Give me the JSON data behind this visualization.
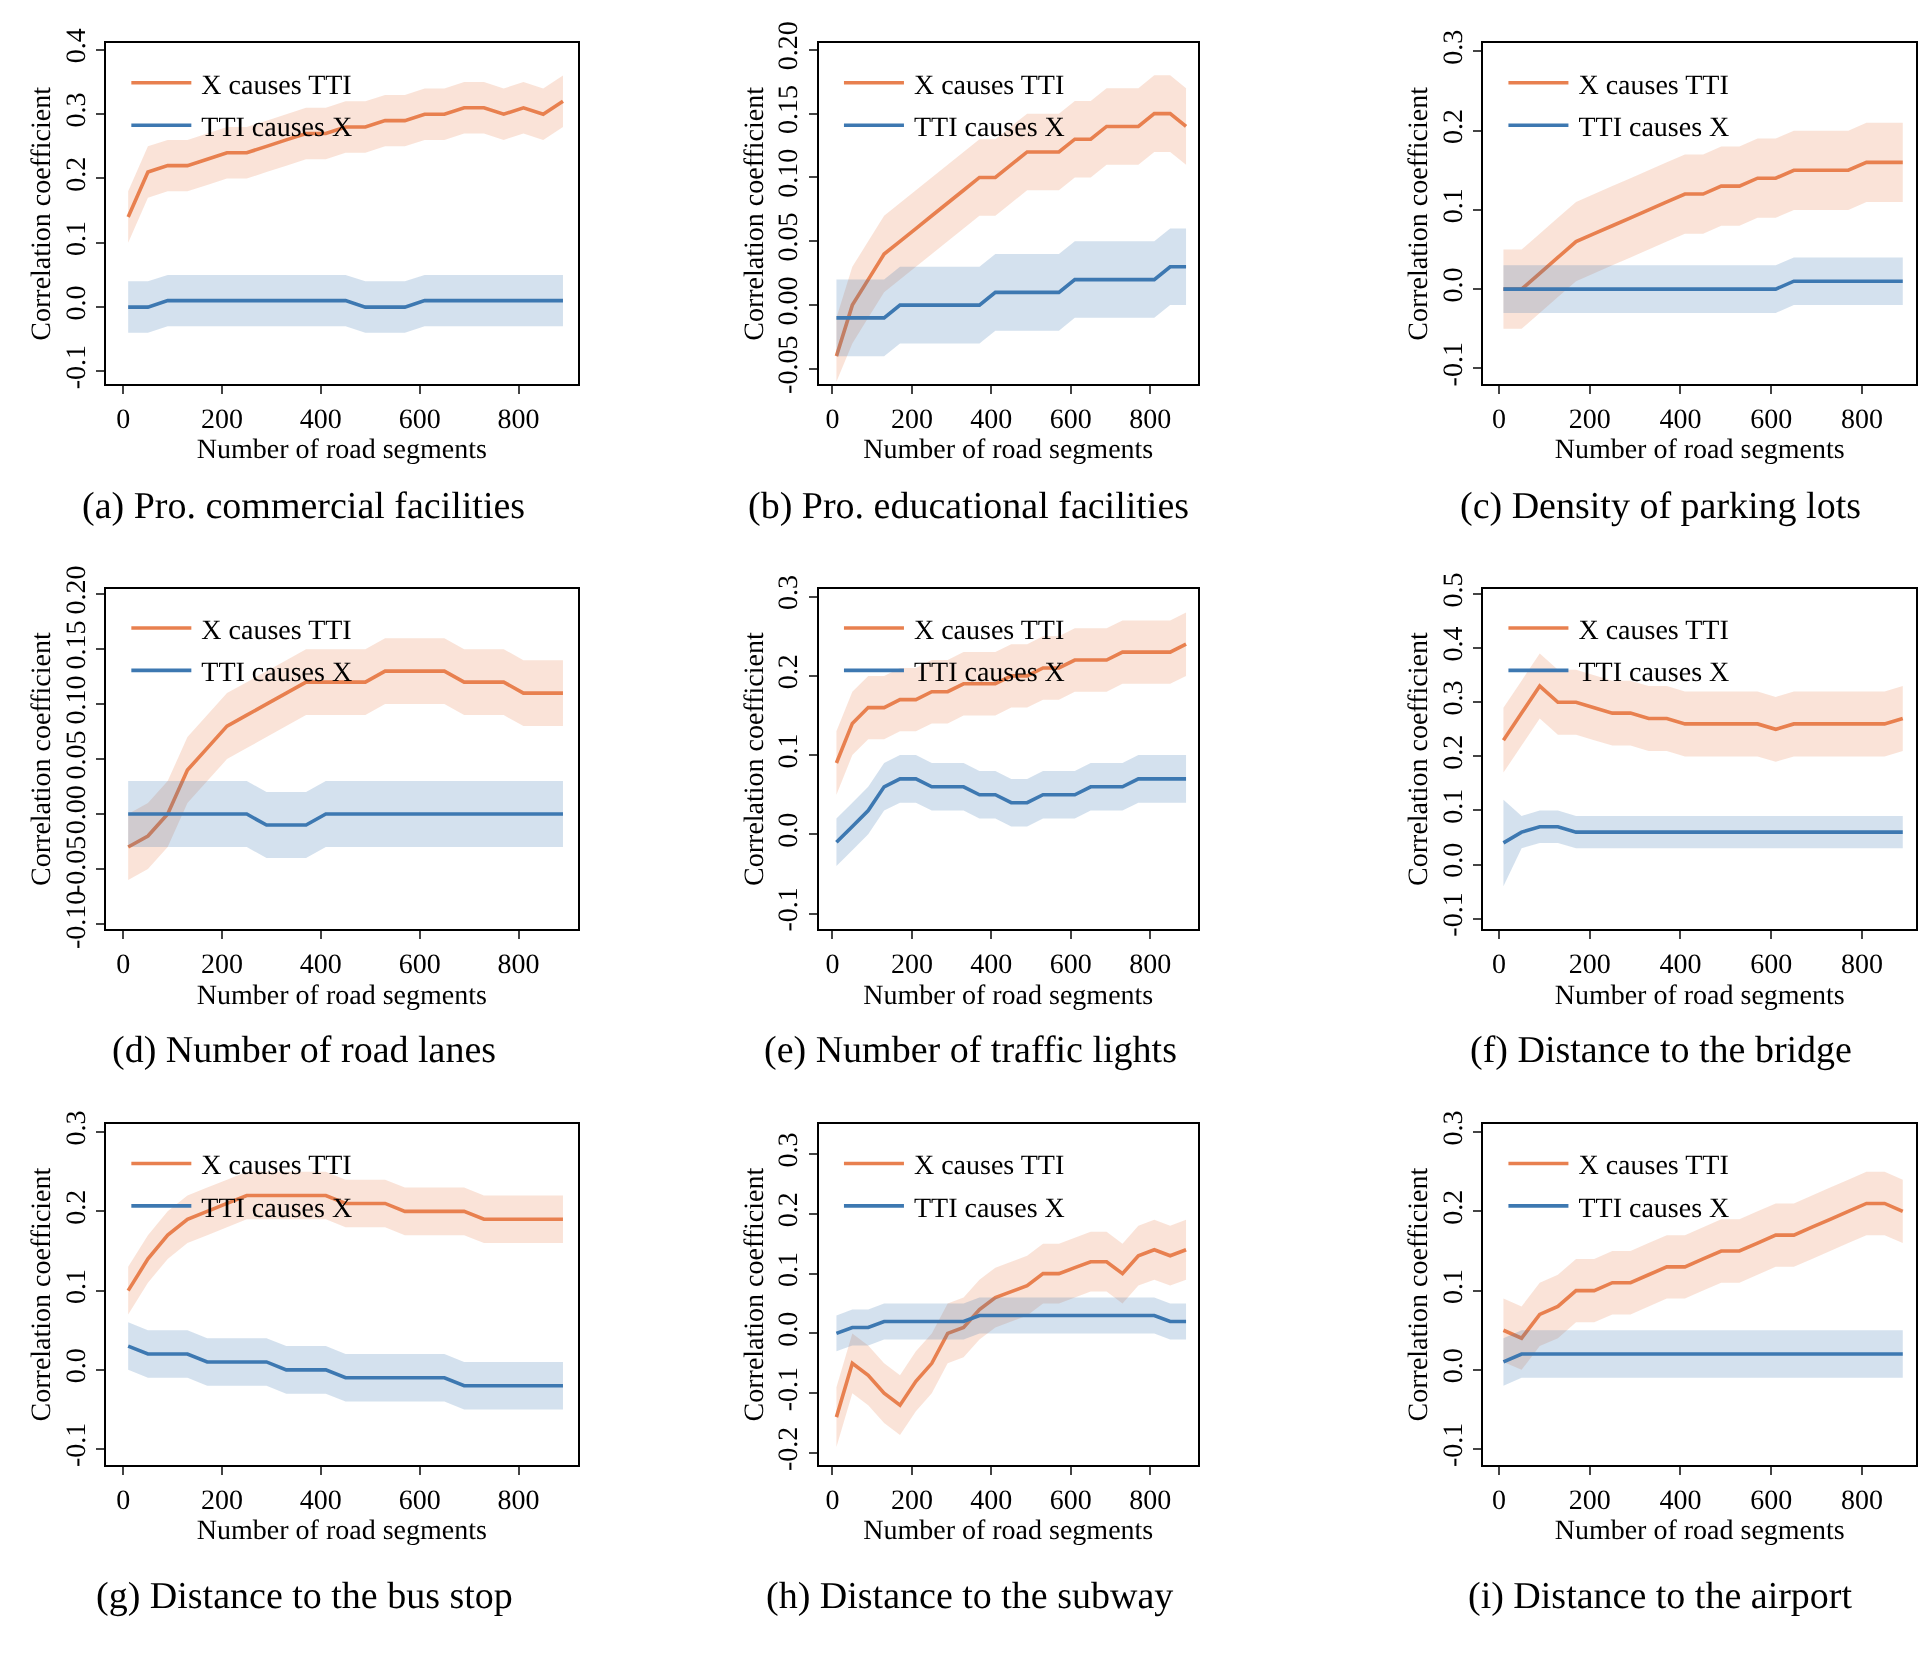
{
  "chart_data": [
    {
      "type": "line",
      "title": "(a) Pro. commercial facilities",
      "xlabel": "Number of road segments",
      "ylabel": "Correlation coefficient",
      "legend": "top left",
      "x": [
        10,
        50,
        90,
        130,
        170,
        210,
        250,
        290,
        330,
        370,
        410,
        450,
        490,
        530,
        570,
        610,
        650,
        690,
        730,
        770,
        810,
        850,
        890
      ],
      "xlim": [
        -35,
        920
      ],
      "xticks": [
        0,
        200,
        400,
        600,
        800
      ],
      "ylim": [
        -0.12,
        0.41
      ],
      "yticks": [
        {
          "value": -0.1,
          "label": "-0.1"
        },
        {
          "value": 0,
          "label": "0.0"
        },
        {
          "value": 0.1,
          "label": "0.1"
        },
        {
          "value": 0.2,
          "label": "0.2"
        },
        {
          "value": 0.3,
          "label": "0.3"
        },
        {
          "value": 0.4,
          "label": "0.4"
        }
      ],
      "series": [
        {
          "name": "X causes TTI",
          "color": "#e8804f",
          "values": [
            0.14,
            0.21,
            0.22,
            0.22,
            0.23,
            0.24,
            0.24,
            0.25,
            0.26,
            0.27,
            0.27,
            0.28,
            0.28,
            0.29,
            0.29,
            0.3,
            0.3,
            0.31,
            0.31,
            0.3,
            0.31,
            0.3,
            0.32
          ],
          "lower": [
            0.1,
            0.17,
            0.18,
            0.18,
            0.19,
            0.2,
            0.2,
            0.21,
            0.22,
            0.23,
            0.23,
            0.24,
            0.24,
            0.25,
            0.25,
            0.26,
            0.26,
            0.27,
            0.27,
            0.26,
            0.27,
            0.26,
            0.28
          ],
          "upper": [
            0.18,
            0.25,
            0.26,
            0.26,
            0.27,
            0.28,
            0.28,
            0.29,
            0.3,
            0.31,
            0.31,
            0.32,
            0.32,
            0.33,
            0.33,
            0.34,
            0.34,
            0.35,
            0.35,
            0.34,
            0.35,
            0.34,
            0.36
          ]
        },
        {
          "name": "TTI causes X",
          "color": "#3d78b1",
          "values": [
            0.0,
            0.0,
            0.01,
            0.01,
            0.01,
            0.01,
            0.01,
            0.01,
            0.01,
            0.01,
            0.01,
            0.01,
            0.0,
            0.0,
            0.0,
            0.01,
            0.01,
            0.01,
            0.01,
            0.01,
            0.01,
            0.01,
            0.01
          ],
          "lower": [
            -0.04,
            -0.04,
            -0.03,
            -0.03,
            -0.03,
            -0.03,
            -0.03,
            -0.03,
            -0.03,
            -0.03,
            -0.03,
            -0.03,
            -0.04,
            -0.04,
            -0.04,
            -0.03,
            -0.03,
            -0.03,
            -0.03,
            -0.03,
            -0.03,
            -0.03,
            -0.03
          ],
          "upper": [
            0.04,
            0.04,
            0.05,
            0.05,
            0.05,
            0.05,
            0.05,
            0.05,
            0.05,
            0.05,
            0.05,
            0.05,
            0.04,
            0.04,
            0.04,
            0.05,
            0.05,
            0.05,
            0.05,
            0.05,
            0.05,
            0.05,
            0.05
          ]
        }
      ]
    },
    {
      "type": "line",
      "title": "(b) Pro. educational facilities",
      "xlabel": "Number of road segments",
      "ylabel": "Correlation coefficient",
      "legend": "top left",
      "x": [
        10,
        50,
        90,
        130,
        170,
        210,
        250,
        290,
        330,
        370,
        410,
        450,
        490,
        530,
        570,
        610,
        650,
        690,
        730,
        770,
        810,
        850,
        890
      ],
      "xlim": [
        -35,
        920
      ],
      "xticks": [
        0,
        200,
        400,
        600,
        800
      ],
      "ylim": [
        -0.062,
        0.205
      ],
      "yticks": [
        {
          "value": -0.05,
          "label": "-0.05"
        },
        {
          "value": 0,
          "label": "0.00"
        },
        {
          "value": 0.05,
          "label": "0.05"
        },
        {
          "value": 0.1,
          "label": "0.10"
        },
        {
          "value": 0.15,
          "label": "0.15"
        },
        {
          "value": 0.2,
          "label": "0.20"
        }
      ],
      "series": [
        {
          "name": "X causes TTI",
          "color": "#e8804f",
          "values": [
            -0.04,
            0.0,
            0.02,
            0.04,
            0.05,
            0.06,
            0.07,
            0.08,
            0.09,
            0.1,
            0.1,
            0.11,
            0.12,
            0.12,
            0.12,
            0.13,
            0.13,
            0.14,
            0.14,
            0.14,
            0.15,
            0.15,
            0.14
          ],
          "lower": [
            -0.06,
            -0.03,
            -0.01,
            0.01,
            0.02,
            0.03,
            0.04,
            0.05,
            0.06,
            0.07,
            0.07,
            0.08,
            0.09,
            0.09,
            0.09,
            0.1,
            0.1,
            0.11,
            0.11,
            0.11,
            0.12,
            0.12,
            0.11
          ],
          "upper": [
            -0.01,
            0.03,
            0.05,
            0.07,
            0.08,
            0.09,
            0.1,
            0.11,
            0.12,
            0.13,
            0.13,
            0.14,
            0.15,
            0.15,
            0.15,
            0.16,
            0.16,
            0.17,
            0.17,
            0.17,
            0.18,
            0.18,
            0.17
          ]
        },
        {
          "name": "TTI causes X",
          "color": "#3d78b1",
          "values": [
            -0.01,
            -0.01,
            -0.01,
            -0.01,
            0.0,
            0.0,
            0.0,
            0.0,
            0.0,
            0.0,
            0.01,
            0.01,
            0.01,
            0.01,
            0.01,
            0.02,
            0.02,
            0.02,
            0.02,
            0.02,
            0.02,
            0.03,
            0.03
          ],
          "lower": [
            -0.04,
            -0.04,
            -0.04,
            -0.04,
            -0.03,
            -0.03,
            -0.03,
            -0.03,
            -0.03,
            -0.03,
            -0.02,
            -0.02,
            -0.02,
            -0.02,
            -0.02,
            -0.01,
            -0.01,
            -0.01,
            -0.01,
            -0.01,
            -0.01,
            0.0,
            0.0
          ],
          "upper": [
            0.02,
            0.02,
            0.02,
            0.02,
            0.03,
            0.03,
            0.03,
            0.03,
            0.03,
            0.03,
            0.04,
            0.04,
            0.04,
            0.04,
            0.04,
            0.05,
            0.05,
            0.05,
            0.05,
            0.05,
            0.05,
            0.06,
            0.06
          ]
        }
      ]
    },
    {
      "type": "line",
      "title": "(c) Density of parking lots",
      "xlabel": "Number of road segments",
      "ylabel": "Correlation coefficient",
      "legend": "top left",
      "x": [
        10,
        50,
        90,
        130,
        170,
        210,
        250,
        290,
        330,
        370,
        410,
        450,
        490,
        530,
        570,
        610,
        650,
        690,
        730,
        770,
        810,
        850,
        890
      ],
      "xlim": [
        -35,
        920
      ],
      "xticks": [
        0,
        200,
        400,
        600,
        800
      ],
      "ylim": [
        -0.12,
        0.31
      ],
      "yticks": [
        {
          "value": -0.1,
          "label": "-0.1"
        },
        {
          "value": 0,
          "label": "0.0"
        },
        {
          "value": 0.1,
          "label": "0.1"
        },
        {
          "value": 0.2,
          "label": "0.2"
        },
        {
          "value": 0.3,
          "label": "0.3"
        }
      ],
      "series": [
        {
          "name": "X causes TTI",
          "color": "#e8804f",
          "values": [
            0.0,
            0.0,
            0.02,
            0.04,
            0.06,
            0.07,
            0.08,
            0.09,
            0.1,
            0.11,
            0.12,
            0.12,
            0.13,
            0.13,
            0.14,
            0.14,
            0.15,
            0.15,
            0.15,
            0.15,
            0.16,
            0.16,
            0.16
          ],
          "lower": [
            -0.05,
            -0.05,
            -0.03,
            -0.01,
            0.01,
            0.02,
            0.03,
            0.04,
            0.05,
            0.06,
            0.07,
            0.07,
            0.08,
            0.08,
            0.09,
            0.09,
            0.1,
            0.1,
            0.1,
            0.1,
            0.11,
            0.11,
            0.11
          ],
          "upper": [
            0.05,
            0.05,
            0.07,
            0.09,
            0.11,
            0.12,
            0.13,
            0.14,
            0.15,
            0.16,
            0.17,
            0.17,
            0.18,
            0.18,
            0.19,
            0.19,
            0.2,
            0.2,
            0.2,
            0.2,
            0.21,
            0.21,
            0.21
          ]
        },
        {
          "name": "TTI causes X",
          "color": "#3d78b1",
          "values": [
            0.0,
            0.0,
            0.0,
            0.0,
            0.0,
            0.0,
            0.0,
            0.0,
            0.0,
            0.0,
            0.0,
            0.0,
            0.0,
            0.0,
            0.0,
            0.0,
            0.01,
            0.01,
            0.01,
            0.01,
            0.01,
            0.01,
            0.01
          ],
          "lower": [
            -0.03,
            -0.03,
            -0.03,
            -0.03,
            -0.03,
            -0.03,
            -0.03,
            -0.03,
            -0.03,
            -0.03,
            -0.03,
            -0.03,
            -0.03,
            -0.03,
            -0.03,
            -0.03,
            -0.02,
            -0.02,
            -0.02,
            -0.02,
            -0.02,
            -0.02,
            -0.02
          ],
          "upper": [
            0.03,
            0.03,
            0.03,
            0.03,
            0.03,
            0.03,
            0.03,
            0.03,
            0.03,
            0.03,
            0.03,
            0.03,
            0.03,
            0.03,
            0.03,
            0.03,
            0.04,
            0.04,
            0.04,
            0.04,
            0.04,
            0.04,
            0.04
          ]
        }
      ]
    },
    {
      "type": "line",
      "title": "(d) Number of road lanes",
      "xlabel": "Number of road segments",
      "ylabel": "Correlation coefficient",
      "legend": "top left",
      "x": [
        10,
        50,
        90,
        130,
        170,
        210,
        250,
        290,
        330,
        370,
        410,
        450,
        490,
        530,
        570,
        610,
        650,
        690,
        730,
        770,
        810,
        850,
        890
      ],
      "xlim": [
        -35,
        920
      ],
      "xticks": [
        0,
        200,
        400,
        600,
        800
      ],
      "ylim": [
        -0.105,
        0.205
      ],
      "yticks": [
        {
          "value": -0.1,
          "label": "-0.10"
        },
        {
          "value": -0.05,
          "label": "-0.05"
        },
        {
          "value": 0,
          "label": "0.00"
        },
        {
          "value": 0.05,
          "label": "0.05"
        },
        {
          "value": 0.1,
          "label": "0.10"
        },
        {
          "value": 0.15,
          "label": "0.15"
        },
        {
          "value": 0.2,
          "label": "0.20"
        }
      ],
      "series": [
        {
          "name": "X causes TTI",
          "color": "#e8804f",
          "values": [
            -0.03,
            -0.02,
            0.0,
            0.04,
            0.06,
            0.08,
            0.09,
            0.1,
            0.11,
            0.12,
            0.12,
            0.12,
            0.12,
            0.13,
            0.13,
            0.13,
            0.13,
            0.12,
            0.12,
            0.12,
            0.11,
            0.11,
            0.11
          ],
          "lower": [
            -0.06,
            -0.05,
            -0.03,
            0.01,
            0.03,
            0.05,
            0.06,
            0.07,
            0.08,
            0.09,
            0.09,
            0.09,
            0.09,
            0.1,
            0.1,
            0.1,
            0.1,
            0.09,
            0.09,
            0.09,
            0.08,
            0.08,
            0.08
          ],
          "upper": [
            0.0,
            0.01,
            0.03,
            0.07,
            0.09,
            0.11,
            0.12,
            0.13,
            0.14,
            0.15,
            0.15,
            0.15,
            0.15,
            0.16,
            0.16,
            0.16,
            0.16,
            0.15,
            0.15,
            0.15,
            0.14,
            0.14,
            0.14
          ]
        },
        {
          "name": "TTI causes X",
          "color": "#3d78b1",
          "values": [
            0.0,
            0.0,
            0.0,
            0.0,
            0.0,
            0.0,
            0.0,
            -0.01,
            -0.01,
            -0.01,
            0.0,
            0.0,
            0.0,
            0.0,
            0.0,
            0.0,
            0.0,
            0.0,
            0.0,
            0.0,
            0.0,
            0.0,
            0.0
          ],
          "lower": [
            -0.03,
            -0.03,
            -0.03,
            -0.03,
            -0.03,
            -0.03,
            -0.03,
            -0.04,
            -0.04,
            -0.04,
            -0.03,
            -0.03,
            -0.03,
            -0.03,
            -0.03,
            -0.03,
            -0.03,
            -0.03,
            -0.03,
            -0.03,
            -0.03,
            -0.03,
            -0.03
          ],
          "upper": [
            0.03,
            0.03,
            0.03,
            0.03,
            0.03,
            0.03,
            0.03,
            0.02,
            0.02,
            0.02,
            0.03,
            0.03,
            0.03,
            0.03,
            0.03,
            0.03,
            0.03,
            0.03,
            0.03,
            0.03,
            0.03,
            0.03,
            0.03
          ]
        }
      ]
    },
    {
      "type": "line",
      "title": "(e) Number of traffic lights",
      "xlabel": "Number of road segments",
      "ylabel": "Correlation coefficient",
      "legend": "top left",
      "x": [
        10,
        50,
        90,
        130,
        170,
        210,
        250,
        290,
        330,
        370,
        410,
        450,
        490,
        530,
        570,
        610,
        650,
        690,
        730,
        770,
        810,
        850,
        890
      ],
      "xlim": [
        -35,
        920
      ],
      "xticks": [
        0,
        200,
        400,
        600,
        800
      ],
      "ylim": [
        -0.12,
        0.31
      ],
      "yticks": [
        {
          "value": -0.1,
          "label": "-0.1"
        },
        {
          "value": 0,
          "label": "0.0"
        },
        {
          "value": 0.1,
          "label": "0.1"
        },
        {
          "value": 0.2,
          "label": "0.2"
        },
        {
          "value": 0.3,
          "label": "0.3"
        }
      ],
      "series": [
        {
          "name": "X causes TTI",
          "color": "#e8804f",
          "values": [
            0.09,
            0.14,
            0.16,
            0.16,
            0.17,
            0.17,
            0.18,
            0.18,
            0.19,
            0.19,
            0.19,
            0.2,
            0.2,
            0.21,
            0.21,
            0.22,
            0.22,
            0.22,
            0.23,
            0.23,
            0.23,
            0.23,
            0.24
          ],
          "lower": [
            0.05,
            0.1,
            0.12,
            0.12,
            0.13,
            0.13,
            0.14,
            0.14,
            0.15,
            0.15,
            0.15,
            0.16,
            0.16,
            0.17,
            0.17,
            0.18,
            0.18,
            0.18,
            0.19,
            0.19,
            0.19,
            0.19,
            0.2
          ],
          "upper": [
            0.13,
            0.18,
            0.2,
            0.2,
            0.21,
            0.21,
            0.22,
            0.22,
            0.23,
            0.23,
            0.23,
            0.24,
            0.24,
            0.25,
            0.25,
            0.26,
            0.26,
            0.26,
            0.27,
            0.27,
            0.27,
            0.27,
            0.28
          ]
        },
        {
          "name": "TTI causes X",
          "color": "#3d78b1",
          "values": [
            -0.01,
            0.01,
            0.03,
            0.06,
            0.07,
            0.07,
            0.06,
            0.06,
            0.06,
            0.05,
            0.05,
            0.04,
            0.04,
            0.05,
            0.05,
            0.05,
            0.06,
            0.06,
            0.06,
            0.07,
            0.07,
            0.07,
            0.07
          ],
          "lower": [
            -0.04,
            -0.02,
            0.0,
            0.03,
            0.04,
            0.04,
            0.03,
            0.03,
            0.03,
            0.02,
            0.02,
            0.01,
            0.01,
            0.02,
            0.02,
            0.02,
            0.03,
            0.03,
            0.03,
            0.04,
            0.04,
            0.04,
            0.04
          ],
          "upper": [
            0.02,
            0.04,
            0.06,
            0.09,
            0.1,
            0.1,
            0.09,
            0.09,
            0.09,
            0.08,
            0.08,
            0.07,
            0.07,
            0.08,
            0.08,
            0.08,
            0.09,
            0.09,
            0.09,
            0.1,
            0.1,
            0.1,
            0.1
          ]
        }
      ]
    },
    {
      "type": "line",
      "title": "(f) Distance to the bridge",
      "xlabel": "Number of road segments",
      "ylabel": "Correlation coefficient",
      "legend": "top left",
      "x": [
        10,
        50,
        90,
        130,
        170,
        210,
        250,
        290,
        330,
        370,
        410,
        450,
        490,
        530,
        570,
        610,
        650,
        690,
        730,
        770,
        810,
        850,
        890
      ],
      "xlim": [
        -35,
        920
      ],
      "xticks": [
        0,
        200,
        400,
        600,
        800
      ],
      "ylim": [
        -0.12,
        0.51
      ],
      "yticks": [
        {
          "value": -0.1,
          "label": "-0.1"
        },
        {
          "value": 0,
          "label": "0.0"
        },
        {
          "value": 0.1,
          "label": "0.1"
        },
        {
          "value": 0.2,
          "label": "0.2"
        },
        {
          "value": 0.3,
          "label": "0.3"
        },
        {
          "value": 0.4,
          "label": "0.4"
        },
        {
          "value": 0.5,
          "label": "0.5"
        }
      ],
      "series": [
        {
          "name": "X causes TTI",
          "color": "#e8804f",
          "values": [
            0.23,
            0.28,
            0.33,
            0.3,
            0.3,
            0.29,
            0.28,
            0.28,
            0.27,
            0.27,
            0.26,
            0.26,
            0.26,
            0.26,
            0.26,
            0.25,
            0.26,
            0.26,
            0.26,
            0.26,
            0.26,
            0.26,
            0.27
          ],
          "lower": [
            0.17,
            0.22,
            0.27,
            0.24,
            0.24,
            0.23,
            0.22,
            0.22,
            0.21,
            0.21,
            0.2,
            0.2,
            0.2,
            0.2,
            0.2,
            0.19,
            0.2,
            0.2,
            0.2,
            0.2,
            0.2,
            0.2,
            0.21
          ],
          "upper": [
            0.29,
            0.34,
            0.39,
            0.36,
            0.36,
            0.35,
            0.34,
            0.34,
            0.33,
            0.33,
            0.32,
            0.32,
            0.32,
            0.32,
            0.32,
            0.31,
            0.32,
            0.32,
            0.32,
            0.32,
            0.32,
            0.32,
            0.33
          ]
        },
        {
          "name": "TTI causes X",
          "color": "#3d78b1",
          "values": [
            0.04,
            0.06,
            0.07,
            0.07,
            0.06,
            0.06,
            0.06,
            0.06,
            0.06,
            0.06,
            0.06,
            0.06,
            0.06,
            0.06,
            0.06,
            0.06,
            0.06,
            0.06,
            0.06,
            0.06,
            0.06,
            0.06,
            0.06
          ],
          "lower": [
            -0.04,
            0.03,
            0.04,
            0.04,
            0.03,
            0.03,
            0.03,
            0.03,
            0.03,
            0.03,
            0.03,
            0.03,
            0.03,
            0.03,
            0.03,
            0.03,
            0.03,
            0.03,
            0.03,
            0.03,
            0.03,
            0.03,
            0.03
          ],
          "upper": [
            0.12,
            0.09,
            0.1,
            0.1,
            0.09,
            0.09,
            0.09,
            0.09,
            0.09,
            0.09,
            0.09,
            0.09,
            0.09,
            0.09,
            0.09,
            0.09,
            0.09,
            0.09,
            0.09,
            0.09,
            0.09,
            0.09,
            0.09
          ]
        }
      ]
    },
    {
      "type": "line",
      "title": "(g) Distance to the bus stop",
      "xlabel": "Number of road segments",
      "ylabel": "Correlation coefficient",
      "legend": "top left",
      "x": [
        10,
        50,
        90,
        130,
        170,
        210,
        250,
        290,
        330,
        370,
        410,
        450,
        490,
        530,
        570,
        610,
        650,
        690,
        730,
        770,
        810,
        850,
        890
      ],
      "xlim": [
        -35,
        920
      ],
      "xticks": [
        0,
        200,
        400,
        600,
        800
      ],
      "ylim": [
        -0.12,
        0.31
      ],
      "yticks": [
        {
          "value": -0.1,
          "label": "-0.1"
        },
        {
          "value": 0,
          "label": "0.0"
        },
        {
          "value": 0.1,
          "label": "0.1"
        },
        {
          "value": 0.2,
          "label": "0.2"
        },
        {
          "value": 0.3,
          "label": "0.3"
        }
      ],
      "series": [
        {
          "name": "X causes TTI",
          "color": "#e8804f",
          "values": [
            0.1,
            0.14,
            0.17,
            0.19,
            0.2,
            0.21,
            0.22,
            0.22,
            0.22,
            0.22,
            0.22,
            0.21,
            0.21,
            0.21,
            0.2,
            0.2,
            0.2,
            0.2,
            0.19,
            0.19,
            0.19,
            0.19,
            0.19
          ],
          "lower": [
            0.07,
            0.11,
            0.14,
            0.16,
            0.17,
            0.18,
            0.19,
            0.19,
            0.19,
            0.19,
            0.19,
            0.18,
            0.18,
            0.18,
            0.17,
            0.17,
            0.17,
            0.17,
            0.16,
            0.16,
            0.16,
            0.16,
            0.16
          ],
          "upper": [
            0.13,
            0.17,
            0.2,
            0.22,
            0.23,
            0.24,
            0.25,
            0.25,
            0.25,
            0.25,
            0.25,
            0.24,
            0.24,
            0.24,
            0.23,
            0.23,
            0.23,
            0.23,
            0.22,
            0.22,
            0.22,
            0.22,
            0.22
          ]
        },
        {
          "name": "TTI causes X",
          "color": "#3d78b1",
          "values": [
            0.03,
            0.02,
            0.02,
            0.02,
            0.01,
            0.01,
            0.01,
            0.01,
            0.0,
            0.0,
            0.0,
            -0.01,
            -0.01,
            -0.01,
            -0.01,
            -0.01,
            -0.01,
            -0.02,
            -0.02,
            -0.02,
            -0.02,
            -0.02,
            -0.02
          ],
          "lower": [
            0.0,
            -0.01,
            -0.01,
            -0.01,
            -0.02,
            -0.02,
            -0.02,
            -0.02,
            -0.03,
            -0.03,
            -0.03,
            -0.04,
            -0.04,
            -0.04,
            -0.04,
            -0.04,
            -0.04,
            -0.05,
            -0.05,
            -0.05,
            -0.05,
            -0.05,
            -0.05
          ],
          "upper": [
            0.06,
            0.05,
            0.05,
            0.05,
            0.04,
            0.04,
            0.04,
            0.04,
            0.03,
            0.03,
            0.03,
            0.02,
            0.02,
            0.02,
            0.02,
            0.02,
            0.02,
            0.01,
            0.01,
            0.01,
            0.01,
            0.01,
            0.01
          ]
        }
      ]
    },
    {
      "type": "line",
      "title": "(h) Distance to the subway",
      "xlabel": "Number of road segments",
      "ylabel": "Correlation coefficient",
      "legend": "top left",
      "x": [
        10,
        50,
        90,
        130,
        170,
        210,
        250,
        290,
        330,
        370,
        410,
        450,
        490,
        530,
        570,
        610,
        650,
        690,
        730,
        770,
        810,
        850,
        890
      ],
      "xlim": [
        -35,
        920
      ],
      "xticks": [
        0,
        200,
        400,
        600,
        800
      ],
      "ylim": [
        -0.22,
        0.35
      ],
      "yticks": [
        {
          "value": -0.2,
          "label": "-0.2"
        },
        {
          "value": -0.1,
          "label": "-0.1"
        },
        {
          "value": 0,
          "label": "0.0"
        },
        {
          "value": 0.1,
          "label": "0.1"
        },
        {
          "value": 0.2,
          "label": "0.2"
        },
        {
          "value": 0.3,
          "label": "0.3"
        }
      ],
      "series": [
        {
          "name": "X causes TTI",
          "color": "#e8804f",
          "values": [
            -0.14,
            -0.05,
            -0.07,
            -0.1,
            -0.12,
            -0.08,
            -0.05,
            0.0,
            0.01,
            0.04,
            0.06,
            0.07,
            0.08,
            0.1,
            0.1,
            0.11,
            0.12,
            0.12,
            0.1,
            0.13,
            0.14,
            0.13,
            0.14
          ],
          "lower": [
            -0.19,
            -0.1,
            -0.12,
            -0.15,
            -0.17,
            -0.13,
            -0.1,
            -0.05,
            -0.04,
            -0.01,
            0.01,
            0.02,
            0.03,
            0.05,
            0.05,
            0.06,
            0.07,
            0.07,
            0.05,
            0.08,
            0.09,
            0.08,
            0.09
          ],
          "upper": [
            -0.09,
            0.0,
            -0.02,
            -0.05,
            -0.07,
            -0.03,
            0.0,
            0.05,
            0.06,
            0.09,
            0.11,
            0.12,
            0.13,
            0.15,
            0.15,
            0.16,
            0.17,
            0.17,
            0.15,
            0.18,
            0.19,
            0.18,
            0.19
          ]
        },
        {
          "name": "TTI causes X",
          "color": "#3d78b1",
          "values": [
            0.0,
            0.01,
            0.01,
            0.02,
            0.02,
            0.02,
            0.02,
            0.02,
            0.02,
            0.03,
            0.03,
            0.03,
            0.03,
            0.03,
            0.03,
            0.03,
            0.03,
            0.03,
            0.03,
            0.03,
            0.03,
            0.02,
            0.02
          ],
          "lower": [
            -0.03,
            -0.02,
            -0.02,
            -0.01,
            -0.01,
            -0.01,
            -0.01,
            -0.01,
            -0.01,
            0.0,
            0.0,
            0.0,
            0.0,
            0.0,
            0.0,
            0.0,
            0.0,
            0.0,
            0.0,
            0.0,
            0.0,
            -0.01,
            -0.01
          ],
          "upper": [
            0.03,
            0.04,
            0.04,
            0.05,
            0.05,
            0.05,
            0.05,
            0.05,
            0.05,
            0.06,
            0.06,
            0.06,
            0.06,
            0.06,
            0.06,
            0.06,
            0.06,
            0.06,
            0.06,
            0.06,
            0.06,
            0.05,
            0.05
          ]
        }
      ]
    },
    {
      "type": "line",
      "title": "(i) Distance to the airport",
      "xlabel": "Number of road segments",
      "ylabel": "Correlation coefficient",
      "legend": "top left",
      "x": [
        10,
        50,
        90,
        130,
        170,
        210,
        250,
        290,
        330,
        370,
        410,
        450,
        490,
        530,
        570,
        610,
        650,
        690,
        730,
        770,
        810,
        850,
        890
      ],
      "xlim": [
        -35,
        920
      ],
      "xticks": [
        0,
        200,
        400,
        600,
        800
      ],
      "ylim": [
        -0.12,
        0.31
      ],
      "yticks": [
        {
          "value": -0.1,
          "label": "-0.1"
        },
        {
          "value": 0,
          "label": "0.0"
        },
        {
          "value": 0.1,
          "label": "0.1"
        },
        {
          "value": 0.2,
          "label": "0.2"
        },
        {
          "value": 0.3,
          "label": "0.3"
        }
      ],
      "series": [
        {
          "name": "X causes TTI",
          "color": "#e8804f",
          "values": [
            0.05,
            0.04,
            0.07,
            0.08,
            0.1,
            0.1,
            0.11,
            0.11,
            0.12,
            0.13,
            0.13,
            0.14,
            0.15,
            0.15,
            0.16,
            0.17,
            0.17,
            0.18,
            0.19,
            0.2,
            0.21,
            0.21,
            0.2
          ],
          "lower": [
            0.01,
            0.0,
            0.03,
            0.04,
            0.06,
            0.06,
            0.07,
            0.07,
            0.08,
            0.09,
            0.09,
            0.1,
            0.11,
            0.11,
            0.12,
            0.13,
            0.13,
            0.14,
            0.15,
            0.16,
            0.17,
            0.17,
            0.16
          ],
          "upper": [
            0.09,
            0.08,
            0.11,
            0.12,
            0.14,
            0.14,
            0.15,
            0.15,
            0.16,
            0.17,
            0.17,
            0.18,
            0.19,
            0.19,
            0.2,
            0.21,
            0.21,
            0.22,
            0.23,
            0.24,
            0.25,
            0.25,
            0.24
          ]
        },
        {
          "name": "TTI causes X",
          "color": "#3d78b1",
          "values": [
            0.01,
            0.02,
            0.02,
            0.02,
            0.02,
            0.02,
            0.02,
            0.02,
            0.02,
            0.02,
            0.02,
            0.02,
            0.02,
            0.02,
            0.02,
            0.02,
            0.02,
            0.02,
            0.02,
            0.02,
            0.02,
            0.02,
            0.02
          ],
          "lower": [
            -0.02,
            -0.01,
            -0.01,
            -0.01,
            -0.01,
            -0.01,
            -0.01,
            -0.01,
            -0.01,
            -0.01,
            -0.01,
            -0.01,
            -0.01,
            -0.01,
            -0.01,
            -0.01,
            -0.01,
            -0.01,
            -0.01,
            -0.01,
            -0.01,
            -0.01,
            -0.01
          ],
          "upper": [
            0.04,
            0.05,
            0.05,
            0.05,
            0.05,
            0.05,
            0.05,
            0.05,
            0.05,
            0.05,
            0.05,
            0.05,
            0.05,
            0.05,
            0.05,
            0.05,
            0.05,
            0.05,
            0.05,
            0.05,
            0.05,
            0.05,
            0.05
          ]
        }
      ]
    }
  ]
}
